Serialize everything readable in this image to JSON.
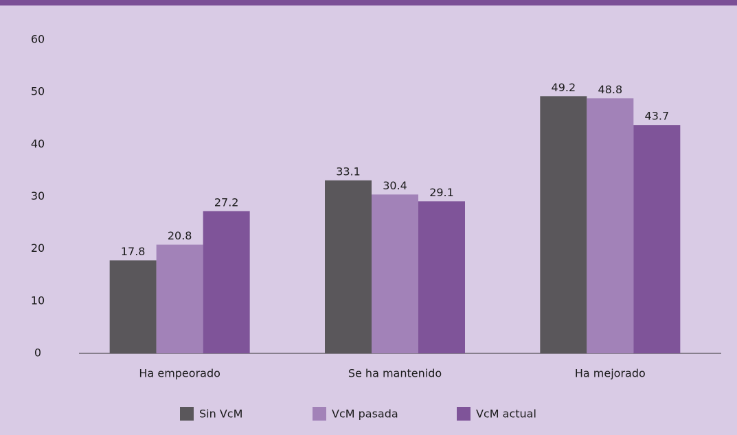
{
  "chart_data": {
    "type": "bar",
    "categories": [
      "Ha empeorado",
      "Se ha mantenido",
      "Ha mejorado"
    ],
    "series": [
      {
        "name": "Sin VcM",
        "color": "#5a575b",
        "values": [
          17.8,
          33.1,
          49.2
        ]
      },
      {
        "name": "VcM pasada",
        "color": "#a282b8",
        "values": [
          20.8,
          30.4,
          48.8
        ]
      },
      {
        "name": "VcM actual",
        "color": "#7f5499",
        "values": [
          27.2,
          29.1,
          43.7
        ]
      }
    ],
    "ylim": [
      0,
      60
    ],
    "yticks": [
      0,
      10,
      20,
      30,
      40,
      50,
      60
    ],
    "grid": false,
    "legend": "bottom"
  }
}
